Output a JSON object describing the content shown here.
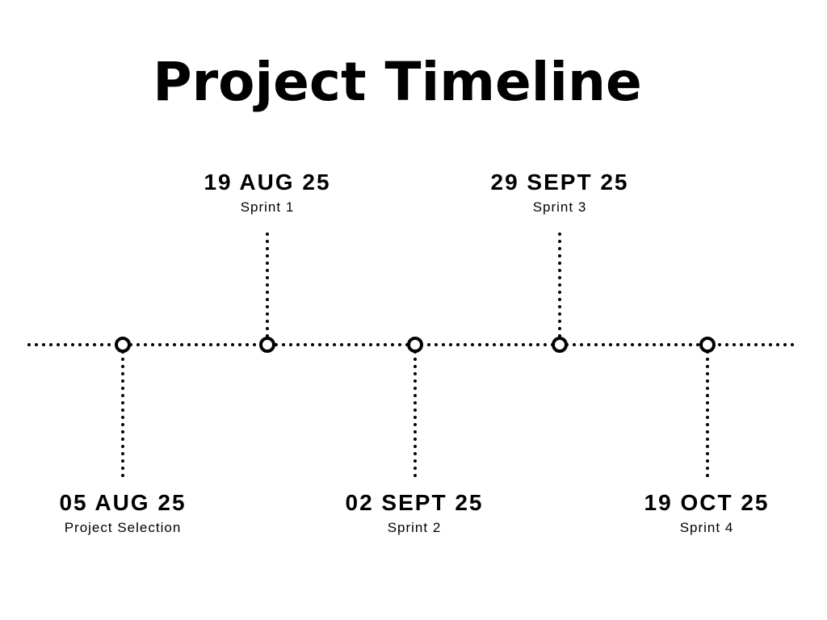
{
  "title": "Project Timeline",
  "milestones": [
    {
      "date": "05 AUG 25",
      "label": "Project Selection"
    },
    {
      "date": "19 AUG 25",
      "label": "Sprint 1"
    },
    {
      "date": "02 SEPT 25",
      "label": "Sprint 2"
    },
    {
      "date": "29 SEPT 25",
      "label": "Sprint 3"
    },
    {
      "date": "19 OCT 25",
      "label": "Sprint 4"
    }
  ],
  "colors": {
    "ink": "#000000",
    "background": "#ffffff"
  }
}
